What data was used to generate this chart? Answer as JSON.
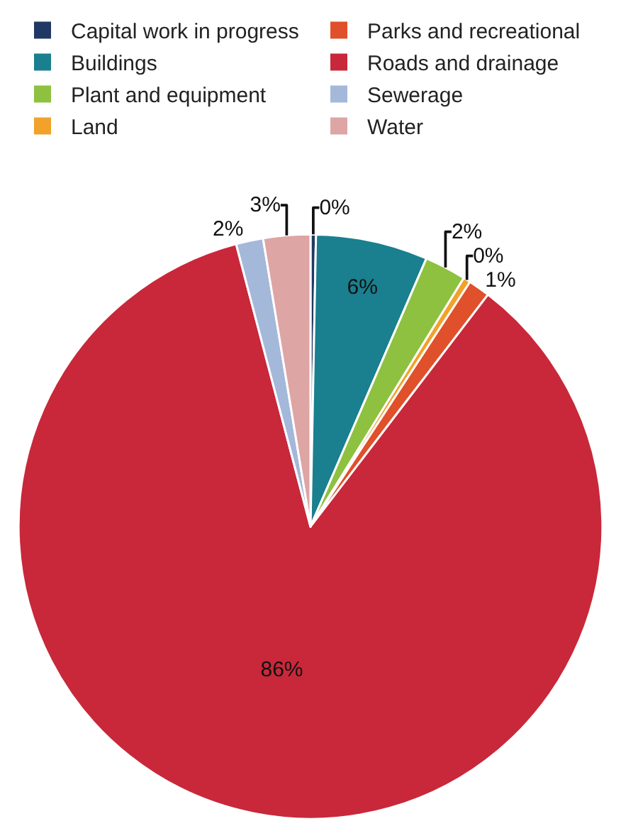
{
  "chart_data": {
    "type": "pie",
    "categories": [
      "Capital work in progress",
      "Buildings",
      "Plant and equipment",
      "Land",
      "Parks and recreational",
      "Roads and drainage",
      "Sewerage",
      "Water"
    ],
    "values": [
      0.3,
      6.2,
      2.3,
      0.4,
      1.2,
      85.5,
      1.5,
      2.6
    ],
    "value_labels": [
      "0%",
      "6%",
      "2%",
      "0%",
      "1%",
      "86%",
      "2%",
      "3%"
    ],
    "colors": [
      "#203864",
      "#1a7f8e",
      "#8dc13f",
      "#f2a12a",
      "#e0502a",
      "#c8283a",
      "#a4b8da",
      "#dea5a5"
    ],
    "legend": "top"
  }
}
